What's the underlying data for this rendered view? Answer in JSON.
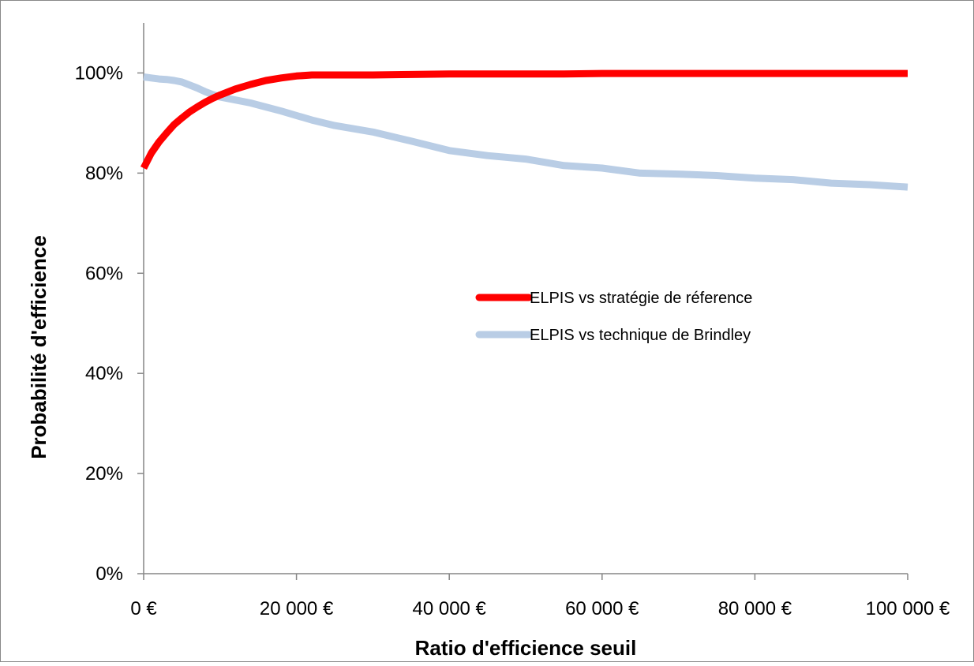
{
  "chart_data": {
    "type": "line",
    "title": "",
    "xlabel": "Ratio d'efficience seuil",
    "ylabel": "Probabilité d'efficience",
    "xlim": [
      0,
      100000
    ],
    "ylim": [
      0,
      1.1
    ],
    "x_ticks": [
      0,
      20000,
      40000,
      60000,
      80000,
      100000
    ],
    "x_tick_labels": [
      "0 €",
      "20 000 €",
      "40 000 €",
      "60 000 €",
      "80 000 €",
      "100 000 €"
    ],
    "y_ticks": [
      0,
      0.2,
      0.4,
      0.6,
      0.8,
      1.0
    ],
    "y_tick_labels": [
      "0%",
      "20%",
      "40%",
      "60%",
      "80%",
      "100%"
    ],
    "grid": false,
    "legend_position": "center-right",
    "x": [
      0,
      1000,
      2000,
      3000,
      4000,
      5000,
      6000,
      7000,
      8000,
      9000,
      10000,
      12000,
      14000,
      16000,
      18000,
      20000,
      22000,
      25000,
      30000,
      35000,
      40000,
      45000,
      50000,
      55000,
      60000,
      65000,
      70000,
      75000,
      80000,
      85000,
      90000,
      95000,
      100000
    ],
    "series": [
      {
        "name": "ELPIS vs stratégie de réference",
        "color": "#ff0000",
        "values": [
          0.81,
          0.84,
          0.862,
          0.88,
          0.897,
          0.91,
          0.922,
          0.932,
          0.941,
          0.949,
          0.956,
          0.968,
          0.977,
          0.985,
          0.99,
          0.994,
          0.996,
          0.996,
          0.996,
          0.997,
          0.998,
          0.998,
          0.998,
          0.998,
          0.999,
          0.999,
          0.999,
          0.999,
          0.999,
          0.999,
          0.999,
          0.999,
          0.999
        ]
      },
      {
        "name": "ELPIS vs technique de Brindley",
        "color": "#b9cde5",
        "values": [
          0.992,
          0.99,
          0.988,
          0.987,
          0.985,
          0.982,
          0.976,
          0.97,
          0.963,
          0.957,
          0.952,
          0.946,
          0.94,
          0.932,
          0.924,
          0.915,
          0.906,
          0.895,
          0.882,
          0.864,
          0.845,
          0.835,
          0.828,
          0.815,
          0.81,
          0.8,
          0.798,
          0.795,
          0.79,
          0.787,
          0.78,
          0.777,
          0.772
        ]
      }
    ]
  }
}
